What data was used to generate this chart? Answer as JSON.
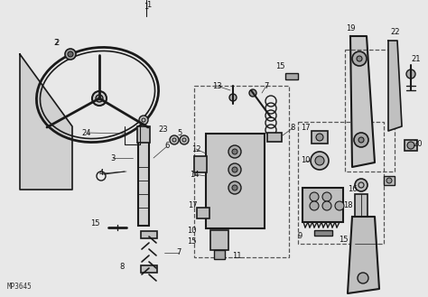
{
  "bg_color": "#e8e8e8",
  "line_color": "#1a1a1a",
  "watermark": "MP3645",
  "fig_width": 4.74,
  "fig_height": 3.29,
  "dpi": 100
}
